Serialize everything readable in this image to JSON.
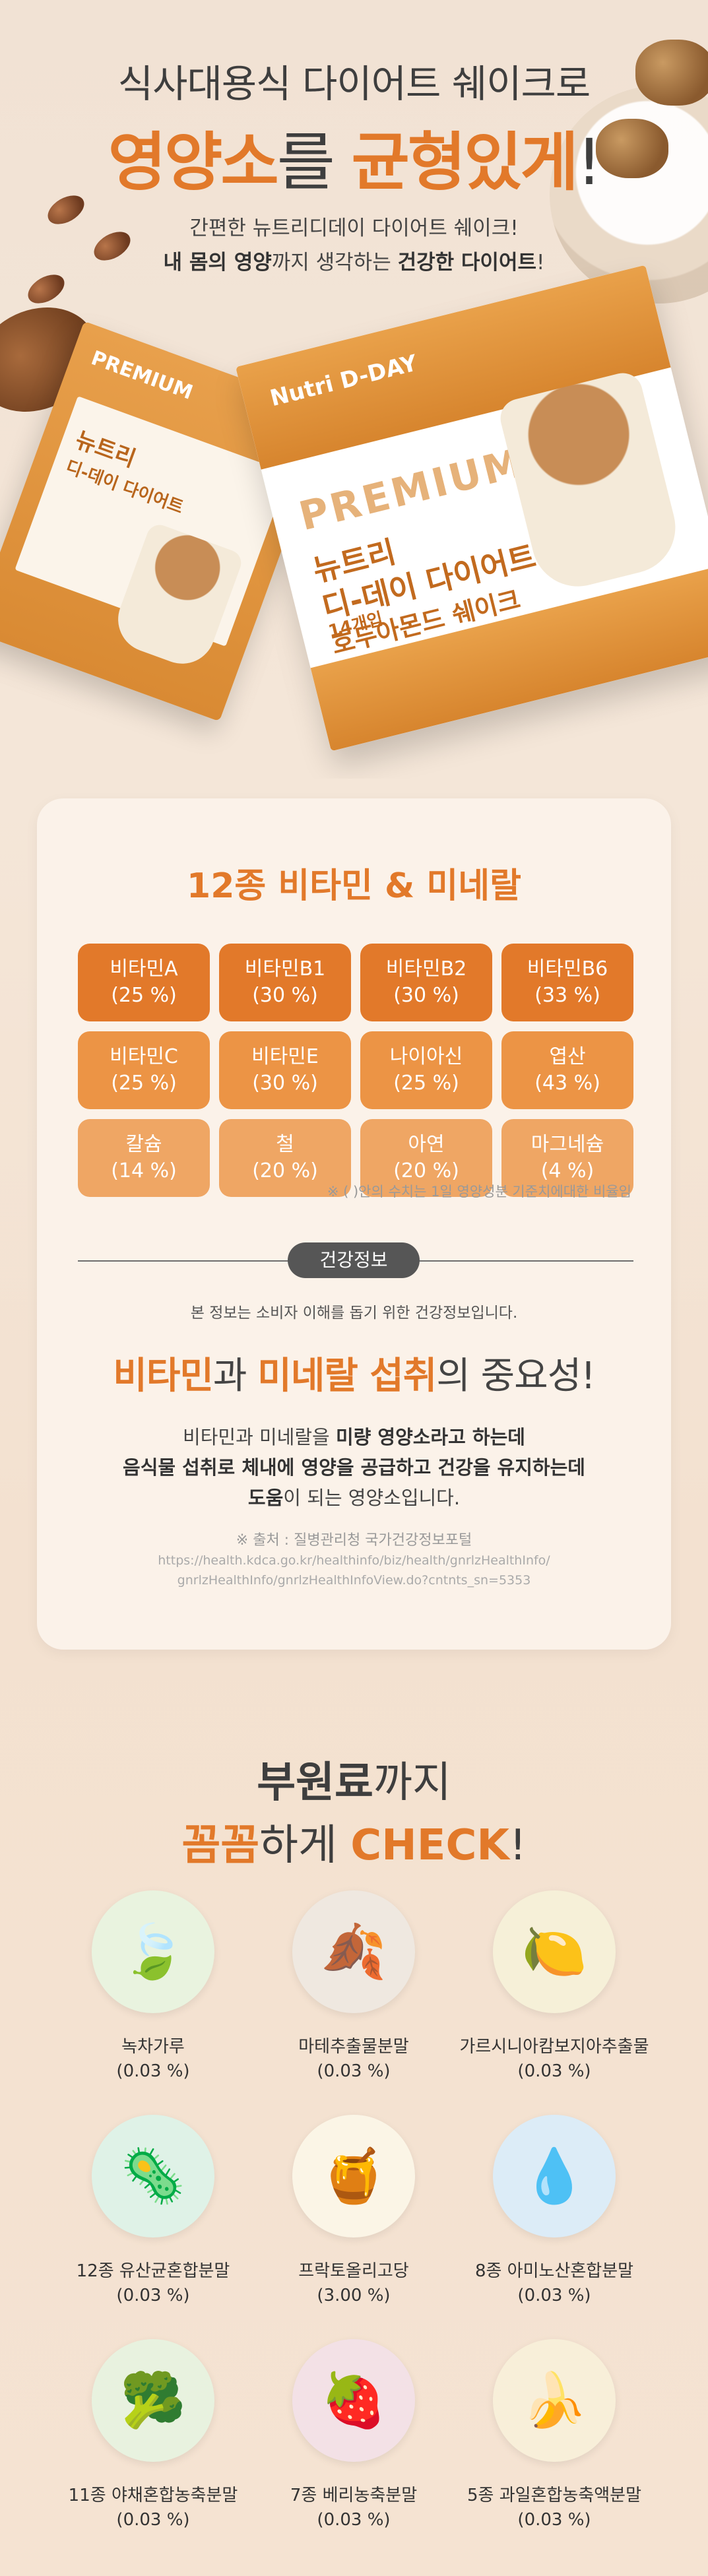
{
  "hero": {
    "title_line1": "식사대용식 다이어트 쉐이크로",
    "title_hl1": "영양소",
    "title_mid": "를 ",
    "title_hl2": "균형있게",
    "title_end": "!",
    "sub_line1": "간편한 뉴트리디데이 다이어트 쉐이크!",
    "sub_line2_b1": "내 몸의 영양",
    "sub_line2_m": "까지 생각하는 ",
    "sub_line2_b2": "건강한 다이어트",
    "sub_line2_end": "!"
  },
  "product": {
    "premium": "PREMIUM",
    "brand": "Nutri D-DAY",
    "name_line1": "뉴트리",
    "name_line2": "디-데이 다이어트",
    "name_line3": "호두아몬드 쉐이크",
    "count": "14개입"
  },
  "vitamins": {
    "title": "12종 비타민 & 미네랄",
    "items": [
      {
        "name": "비타민A",
        "pct": "(25 %)",
        "tone": "c1"
      },
      {
        "name": "비타민B1",
        "pct": "(30 %)",
        "tone": "c1"
      },
      {
        "name": "비타민B2",
        "pct": "(30 %)",
        "tone": "c1"
      },
      {
        "name": "비타민B6",
        "pct": "(33 %)",
        "tone": "c1"
      },
      {
        "name": "비타민C",
        "pct": "(25 %)",
        "tone": "c2"
      },
      {
        "name": "비타민E",
        "pct": "(30 %)",
        "tone": "c2"
      },
      {
        "name": "나이아신",
        "pct": "(25 %)",
        "tone": "c2"
      },
      {
        "name": "엽산",
        "pct": "(43 %)",
        "tone": "c2"
      },
      {
        "name": "칼슘",
        "pct": "(14 %)",
        "tone": "c3"
      },
      {
        "name": "철",
        "pct": "(20 %)",
        "tone": "c3"
      },
      {
        "name": "아연",
        "pct": "(20 %)",
        "tone": "c3"
      },
      {
        "name": "마그네슘",
        "pct": "(4 %)",
        "tone": "c3"
      }
    ],
    "footnote": "※ ( )안의 수치는 1일 영양성분 기준치에대한 비율임"
  },
  "health": {
    "pill": "건강정보",
    "notice": "본 정보는 소비자 이해를 돕기 위한 건강정보입니다.",
    "title_hl1": "비타민",
    "title_m1": "과 ",
    "title_hl2": "미네랄 섭취",
    "title_end": "의 중요성!",
    "body_l1_a": "비타민과 미네랄을 ",
    "body_l1_b": "미량 영양소라고 하는데",
    "body_l2": "음식물 섭취로 체내에 영양을 공급하고 건강을 유지하는데",
    "body_l3_b": "도움",
    "body_l3_a": "이 되는 영양소입니다.",
    "source": "※ 출처 : 질병관리청 국가건강정보포털",
    "url1": "https://health.kdca.go.kr/healthinfo/biz/health/gnrlzHealthInfo/",
    "url2": "gnrlzHealthInfo/gnrlzHealthInfoView.do?cntnts_sn=5353"
  },
  "ingredients": {
    "title_b": "부원료",
    "title_m": "까지",
    "title2_hl": "꼼꼼",
    "title2_m": "하게 ",
    "title2_hl2": "CHECK",
    "title2_end": "!",
    "items": [
      {
        "name": "녹차가루",
        "pct": "(0.03 %)",
        "icon": "🍃",
        "bg": "#e9f3df"
      },
      {
        "name": "마테추출물분말",
        "pct": "(0.03 %)",
        "icon": "🍂",
        "bg": "#efe8e0"
      },
      {
        "name": "가르시니아캄보지아추출물",
        "pct": "(0.03 %)",
        "icon": "🍋",
        "bg": "#f6f0d8"
      },
      {
        "name": "12종 유산균혼합분말",
        "pct": "(0.03 %)",
        "icon": "🦠",
        "bg": "#dff2e7"
      },
      {
        "name": "프락토올리고당",
        "pct": "(3.00 %)",
        "icon": "🍯",
        "bg": "#fbf5e6"
      },
      {
        "name": "8종 아미노산혼합분말",
        "pct": "(0.03 %)",
        "icon": "💧",
        "bg": "#dcecf7"
      },
      {
        "name": "11종 야채혼합농축분말",
        "pct": "(0.03 %)",
        "icon": "🥦",
        "bg": "#e8f2df"
      },
      {
        "name": "7종 베리농축분말",
        "pct": "(0.03 %)",
        "icon": "🍓",
        "bg": "#f3e1e6"
      },
      {
        "name": "5종 과일혼합농축액분말",
        "pct": "(0.03 %)",
        "icon": "🍌",
        "bg": "#f8efd9"
      }
    ]
  }
}
